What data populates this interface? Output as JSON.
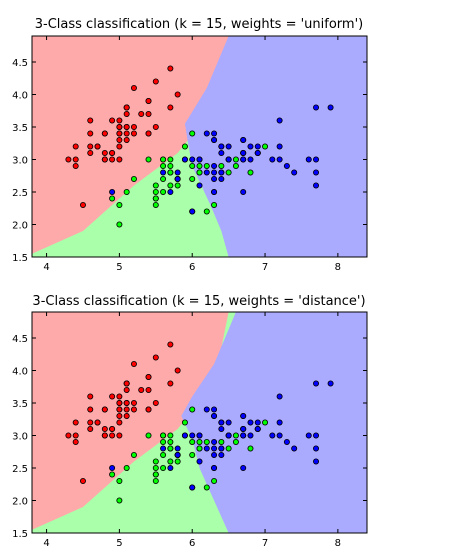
{
  "chart_data": [
    {
      "type": "scatter",
      "title": "3-Class classification (k = 15, weights = 'uniform')",
      "xlim": [
        3.8,
        8.4
      ],
      "ylim": [
        1.5,
        4.9
      ],
      "x_ticks": [
        "4",
        "5",
        "6",
        "7",
        "8"
      ],
      "y_ticks": [
        "1.5",
        "2.0",
        "2.5",
        "3.0",
        "3.5",
        "4.0",
        "4.5"
      ],
      "region_colors": {
        "red": "#FFAAAA",
        "green": "#AAFFAA",
        "blue": "#AAAAFF"
      },
      "point_colors": {
        "red": "#FF0000",
        "green": "#00FF00",
        "blue": "#0000FF"
      },
      "grid": false,
      "legend": "none"
    },
    {
      "type": "scatter",
      "title": "3-Class classification (k = 15, weights = 'distance')",
      "xlim": [
        3.8,
        8.4
      ],
      "ylim": [
        1.5,
        4.9
      ],
      "x_ticks": [
        "4",
        "5",
        "6",
        "7",
        "8"
      ],
      "y_ticks": [
        "1.5",
        "2.0",
        "2.5",
        "3.0",
        "3.5",
        "4.0",
        "4.5"
      ],
      "region_colors": {
        "red": "#FFAAAA",
        "green": "#AAFFAA",
        "blue": "#AAAAFF"
      },
      "point_colors": {
        "red": "#FF0000",
        "green": "#00FF00",
        "blue": "#0000FF"
      },
      "grid": false,
      "legend": "none"
    }
  ],
  "points": {
    "red": [
      [
        5.1,
        3.5
      ],
      [
        4.9,
        3.0
      ],
      [
        4.7,
        3.2
      ],
      [
        4.6,
        3.1
      ],
      [
        5.0,
        3.6
      ],
      [
        5.4,
        3.9
      ],
      [
        4.6,
        3.4
      ],
      [
        5.0,
        3.4
      ],
      [
        4.4,
        2.9
      ],
      [
        4.9,
        3.1
      ],
      [
        5.4,
        3.7
      ],
      [
        4.8,
        3.4
      ],
      [
        4.8,
        3.0
      ],
      [
        4.3,
        3.0
      ],
      [
        5.8,
        4.0
      ],
      [
        5.7,
        4.4
      ],
      [
        5.4,
        3.9
      ],
      [
        5.1,
        3.5
      ],
      [
        5.7,
        3.8
      ],
      [
        5.1,
        3.8
      ],
      [
        5.4,
        3.4
      ],
      [
        5.1,
        3.7
      ],
      [
        4.6,
        3.6
      ],
      [
        5.1,
        3.3
      ],
      [
        4.8,
        3.4
      ],
      [
        5.0,
        3.0
      ],
      [
        5.0,
        3.4
      ],
      [
        5.2,
        3.5
      ],
      [
        5.2,
        3.4
      ],
      [
        4.7,
        3.2
      ],
      [
        4.8,
        3.1
      ],
      [
        5.4,
        3.4
      ],
      [
        5.2,
        4.1
      ],
      [
        5.5,
        4.2
      ],
      [
        4.9,
        3.1
      ],
      [
        5.0,
        3.2
      ],
      [
        5.5,
        3.5
      ],
      [
        4.9,
        3.6
      ],
      [
        4.4,
        3.0
      ],
      [
        5.1,
        3.4
      ],
      [
        5.0,
        3.5
      ],
      [
        4.5,
        2.3
      ],
      [
        4.4,
        3.2
      ],
      [
        5.0,
        3.5
      ],
      [
        5.1,
        3.8
      ],
      [
        4.8,
        3.0
      ],
      [
        5.1,
        3.8
      ],
      [
        4.6,
        3.2
      ],
      [
        5.3,
        3.7
      ],
      [
        5.0,
        3.3
      ]
    ],
    "green": [
      [
        7.0,
        3.2
      ],
      [
        6.4,
        3.2
      ],
      [
        6.9,
        3.1
      ],
      [
        5.5,
        2.3
      ],
      [
        6.5,
        2.8
      ],
      [
        5.7,
        2.8
      ],
      [
        6.3,
        3.3
      ],
      [
        4.9,
        2.4
      ],
      [
        6.6,
        2.9
      ],
      [
        5.2,
        2.7
      ],
      [
        5.0,
        2.0
      ],
      [
        5.9,
        3.0
      ],
      [
        6.0,
        2.2
      ],
      [
        6.1,
        2.9
      ],
      [
        5.6,
        2.9
      ],
      [
        6.7,
        3.1
      ],
      [
        5.6,
        3.0
      ],
      [
        5.8,
        2.7
      ],
      [
        6.2,
        2.2
      ],
      [
        5.6,
        2.5
      ],
      [
        5.9,
        3.2
      ],
      [
        6.1,
        2.8
      ],
      [
        6.3,
        2.5
      ],
      [
        6.1,
        2.8
      ],
      [
        6.4,
        2.9
      ],
      [
        6.6,
        3.0
      ],
      [
        6.8,
        2.8
      ],
      [
        6.7,
        3.0
      ],
      [
        6.0,
        2.9
      ],
      [
        5.7,
        2.6
      ],
      [
        5.5,
        2.4
      ],
      [
        5.5,
        2.4
      ],
      [
        5.8,
        2.7
      ],
      [
        6.0,
        2.7
      ],
      [
        5.4,
        3.0
      ],
      [
        6.0,
        3.4
      ],
      [
        6.7,
        3.1
      ],
      [
        6.3,
        2.3
      ],
      [
        5.6,
        3.0
      ],
      [
        5.5,
        2.5
      ],
      [
        5.5,
        2.6
      ],
      [
        6.1,
        3.0
      ],
      [
        5.8,
        2.6
      ],
      [
        5.0,
        2.3
      ],
      [
        5.6,
        2.7
      ],
      [
        5.7,
        3.0
      ],
      [
        5.7,
        2.9
      ],
      [
        6.2,
        2.9
      ],
      [
        5.1,
        2.5
      ],
      [
        5.7,
        2.8
      ]
    ],
    "blue": [
      [
        6.3,
        3.3
      ],
      [
        5.8,
        2.7
      ],
      [
        7.1,
        3.0
      ],
      [
        6.3,
        2.9
      ],
      [
        6.5,
        3.0
      ],
      [
        7.6,
        3.0
      ],
      [
        4.9,
        2.5
      ],
      [
        7.3,
        2.9
      ],
      [
        6.7,
        2.5
      ],
      [
        7.2,
        3.6
      ],
      [
        6.5,
        3.2
      ],
      [
        6.4,
        2.7
      ],
      [
        6.8,
        3.0
      ],
      [
        5.7,
        2.5
      ],
      [
        5.8,
        2.8
      ],
      [
        6.4,
        3.2
      ],
      [
        6.5,
        3.0
      ],
      [
        7.7,
        3.8
      ],
      [
        7.7,
        2.6
      ],
      [
        6.0,
        2.2
      ],
      [
        6.9,
        3.2
      ],
      [
        5.6,
        2.8
      ],
      [
        7.7,
        2.8
      ],
      [
        6.3,
        2.7
      ],
      [
        6.7,
        3.3
      ],
      [
        7.2,
        3.2
      ],
      [
        6.2,
        2.8
      ],
      [
        6.1,
        3.0
      ],
      [
        6.4,
        2.8
      ],
      [
        7.2,
        3.0
      ],
      [
        7.4,
        2.8
      ],
      [
        7.9,
        3.8
      ],
      [
        6.4,
        2.8
      ],
      [
        6.3,
        2.8
      ],
      [
        6.1,
        2.6
      ],
      [
        7.7,
        3.0
      ],
      [
        6.3,
        3.4
      ],
      [
        6.4,
        3.1
      ],
      [
        6.0,
        3.0
      ],
      [
        6.9,
        3.1
      ],
      [
        6.7,
        3.1
      ],
      [
        6.9,
        3.1
      ],
      [
        5.8,
        2.7
      ],
      [
        6.8,
        3.2
      ],
      [
        6.7,
        3.3
      ],
      [
        6.7,
        3.0
      ],
      [
        6.3,
        2.5
      ],
      [
        6.5,
        3.0
      ],
      [
        6.2,
        3.4
      ],
      [
        5.9,
        3.0
      ]
    ]
  }
}
